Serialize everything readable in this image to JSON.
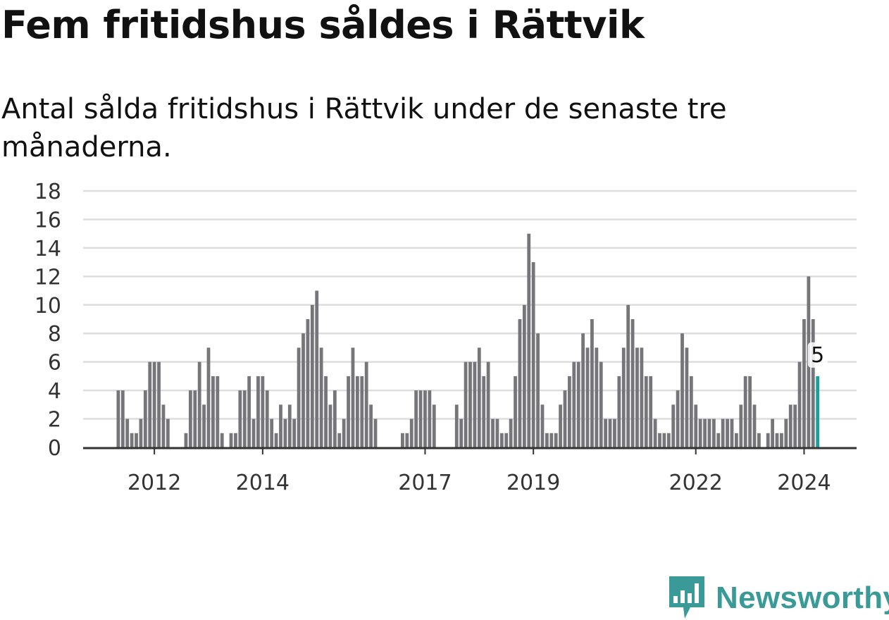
{
  "title": "Fem fritidshus såldes i Rättvik",
  "subtitle": "Antal sålda fritidshus i Rättvik under de senaste tre månaderna.",
  "brand": {
    "name": "Newsworthy",
    "icon": "newsworthy-logo-icon",
    "color": "#3a9a97"
  },
  "colors": {
    "bar": "#76757a",
    "highlight": "#1a9e9e",
    "grid": "#dddddd",
    "axis": "#333333"
  },
  "chart_data": {
    "type": "bar",
    "title": "Fem fritidshus såldes i Rättvik",
    "ylabel": "",
    "xlabel": "",
    "ylim": [
      0,
      18
    ],
    "yticks": [
      "0",
      "2",
      "4",
      "6",
      "8",
      "10",
      "12",
      "14",
      "16",
      "18"
    ],
    "grid": true,
    "x_start": "2011-05",
    "x_interval": "month",
    "xticks": [
      {
        "label": "2012",
        "index": 8
      },
      {
        "label": "2014",
        "index": 32
      },
      {
        "label": "2017",
        "index": 68
      },
      {
        "label": "2019",
        "index": 92
      },
      {
        "label": "2022",
        "index": 128
      },
      {
        "label": "2024",
        "index": 152
      }
    ],
    "values": [
      4,
      4,
      2,
      1,
      1,
      2,
      4,
      6,
      6,
      6,
      3,
      2,
      0,
      0,
      0,
      1,
      4,
      4,
      6,
      3,
      7,
      5,
      5,
      1,
      0,
      1,
      1,
      4,
      4,
      5,
      2,
      5,
      5,
      4,
      2,
      1,
      3,
      2,
      3,
      2,
      7,
      8,
      9,
      10,
      11,
      7,
      5,
      3,
      4,
      1,
      2,
      5,
      7,
      5,
      5,
      6,
      3,
      2,
      0,
      0,
      0,
      0,
      0,
      1,
      1,
      2,
      4,
      4,
      4,
      4,
      3,
      0,
      0,
      0,
      0,
      3,
      2,
      6,
      6,
      6,
      7,
      5,
      6,
      2,
      2,
      1,
      1,
      2,
      5,
      9,
      10,
      15,
      13,
      8,
      3,
      1,
      1,
      1,
      3,
      4,
      5,
      6,
      6,
      8,
      7,
      9,
      7,
      6,
      2,
      2,
      2,
      5,
      7,
      10,
      9,
      7,
      7,
      5,
      5,
      2,
      1,
      1,
      1,
      3,
      4,
      8,
      7,
      5,
      3,
      2,
      2,
      2,
      2,
      1,
      2,
      2,
      2,
      1,
      3,
      5,
      5,
      3,
      1,
      0,
      1,
      2,
      1,
      1,
      2,
      3,
      3,
      6,
      9,
      12,
      9,
      5
    ],
    "highlight_last": true,
    "annotation": {
      "index": 155,
      "text": "5"
    }
  }
}
